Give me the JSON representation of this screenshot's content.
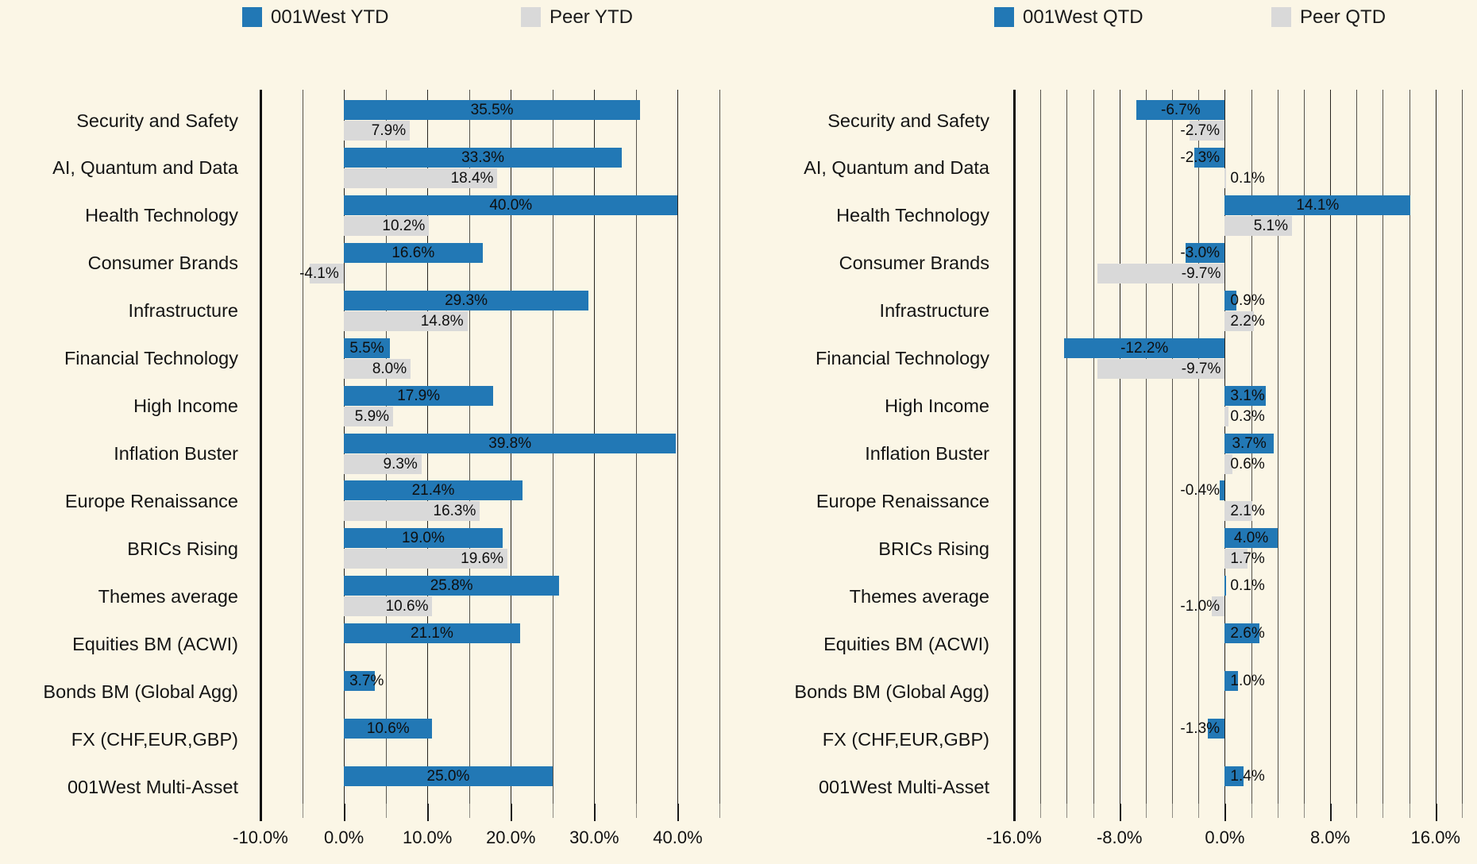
{
  "colors": {
    "background": "#FBF6E6",
    "bar_blue": "#2278B5",
    "bar_gray": "#D9D9D9",
    "axis_line": "#0b0b0b",
    "gridline": "#55524b",
    "text": "#141414"
  },
  "chart_data": [
    {
      "type": "bar",
      "orientation": "horizontal",
      "title": "",
      "legend_position": "top",
      "grid": true,
      "value_label_format": "{value:.1f}%",
      "categories": [
        "Security and Safety",
        "AI, Quantum and Data",
        "Health Technology",
        "Consumer Brands",
        "Infrastructure",
        "Financial Technology",
        "High Income",
        "Inflation Buster",
        "Europe Renaissance",
        "BRICs Rising",
        "Themes average",
        "Equities BM (ACWI)",
        "Bonds BM (Global Agg)",
        "FX (CHF,EUR,GBP)",
        "001West Multi-Asset"
      ],
      "series": [
        {
          "name": "001West YTD",
          "color": "#2278B5",
          "values": [
            35.5,
            33.3,
            40.0,
            16.6,
            29.3,
            5.5,
            17.9,
            39.8,
            21.4,
            19.0,
            25.8,
            21.1,
            3.7,
            10.6,
            25.0
          ]
        },
        {
          "name": "Peer YTD",
          "color": "#D9D9D9",
          "values": [
            7.9,
            18.4,
            10.2,
            -4.1,
            14.8,
            8.0,
            5.9,
            9.3,
            16.3,
            19.6,
            10.6,
            null,
            null,
            null,
            null
          ]
        }
      ],
      "xlim": [
        -10,
        45
      ],
      "x_minor_step": 5,
      "x_major_ticks": [
        -10,
        0,
        10,
        20,
        30,
        40
      ],
      "x_tick_labels": [
        "-10.0%",
        "0.0%",
        "10.0%",
        "20.0%",
        "30.0%",
        "40.0%"
      ],
      "xlabel": "",
      "ylabel": ""
    },
    {
      "type": "bar",
      "orientation": "horizontal",
      "title": "",
      "legend_position": "top",
      "grid": true,
      "value_label_format": "{value:.1f}%",
      "categories": [
        "Security and Safety",
        "AI, Quantum and Data",
        "Health Technology",
        "Consumer Brands",
        "Infrastructure",
        "Financial Technology",
        "High Income",
        "Inflation Buster",
        "Europe Renaissance",
        "BRICs Rising",
        "Themes average",
        "Equities BM (ACWI)",
        "Bonds BM (Global Agg)",
        "FX (CHF,EUR,GBP)",
        "001West Multi-Asset"
      ],
      "series": [
        {
          "name": "001West QTD",
          "color": "#2278B5",
          "values": [
            -6.7,
            -2.3,
            14.1,
            -3.0,
            0.9,
            -12.2,
            3.1,
            3.7,
            -0.4,
            4.0,
            0.1,
            2.6,
            1.0,
            -1.3,
            1.4
          ]
        },
        {
          "name": "Peer QTD",
          "color": "#D9D9D9",
          "values": [
            -2.7,
            0.1,
            5.1,
            -9.7,
            2.2,
            -9.7,
            0.3,
            0.6,
            2.1,
            1.7,
            -1.0,
            null,
            null,
            null,
            null
          ]
        }
      ],
      "xlim": [
        -16,
        18
      ],
      "x_minor_step": 2,
      "x_major_ticks": [
        -16,
        -8,
        0,
        8,
        16
      ],
      "x_tick_labels": [
        "-16.0%",
        "-8.0%",
        "0.0%",
        "8.0%",
        "16.0%"
      ],
      "xlabel": "",
      "ylabel": ""
    }
  ]
}
